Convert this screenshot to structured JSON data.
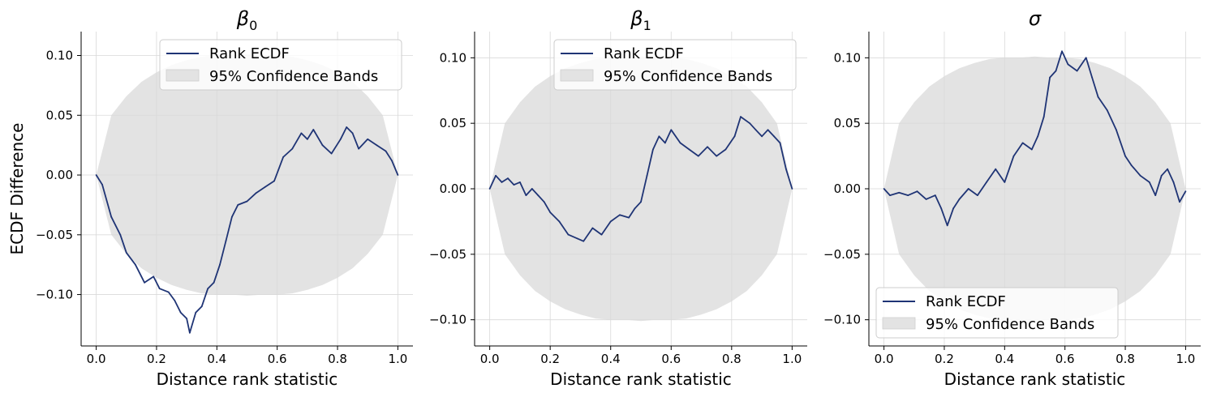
{
  "figure": {
    "ylabel": "ECDF Difference",
    "legend": {
      "line_label": "Rank ECDF",
      "band_label": "95% Confidence Bands"
    },
    "colors": {
      "line": "#1f3475",
      "band": "#e3e3e3",
      "grid": "#d9d9d9"
    }
  },
  "chart_data": [
    {
      "type": "line",
      "title_base": "β",
      "title_sub": "0",
      "xlabel": "Distance rank statistic",
      "ylabel": "ECDF Difference",
      "xlim": [
        -0.05,
        1.05
      ],
      "ylim": [
        -0.143,
        0.12
      ],
      "xticks": [
        "0.0",
        "0.2",
        "0.4",
        "0.6",
        "0.8",
        "1.0"
      ],
      "yticks": [
        "−0.10",
        "−0.05",
        "0.00",
        "0.05",
        "0.10"
      ],
      "ytick_values": [
        -0.1,
        -0.05,
        0.0,
        0.05,
        0.1
      ],
      "grid": true,
      "legend_location": "upper right",
      "band": {
        "x": [
          0,
          0.05,
          0.1,
          0.15,
          0.2,
          0.25,
          0.3,
          0.35,
          0.4,
          0.45,
          0.5,
          0.55,
          0.6,
          0.65,
          0.7,
          0.75,
          0.8,
          0.85,
          0.9,
          0.95,
          1.0
        ],
        "half_width": [
          0,
          0.05,
          0.066,
          0.078,
          0.086,
          0.092,
          0.096,
          0.099,
          0.1,
          0.1,
          0.101,
          0.1,
          0.1,
          0.099,
          0.096,
          0.092,
          0.086,
          0.078,
          0.066,
          0.05,
          0
        ]
      },
      "series": [
        {
          "name": "Rank ECDF",
          "x": [
            0,
            0.02,
            0.05,
            0.08,
            0.1,
            0.13,
            0.16,
            0.19,
            0.21,
            0.24,
            0.26,
            0.28,
            0.3,
            0.31,
            0.33,
            0.35,
            0.37,
            0.39,
            0.41,
            0.43,
            0.45,
            0.47,
            0.5,
            0.53,
            0.56,
            0.59,
            0.62,
            0.65,
            0.68,
            0.7,
            0.72,
            0.75,
            0.78,
            0.81,
            0.83,
            0.85,
            0.87,
            0.9,
            0.93,
            0.96,
            0.98,
            1.0
          ],
          "y": [
            0,
            -0.008,
            -0.035,
            -0.05,
            -0.065,
            -0.075,
            -0.09,
            -0.085,
            -0.095,
            -0.098,
            -0.105,
            -0.115,
            -0.12,
            -0.132,
            -0.115,
            -0.11,
            -0.095,
            -0.09,
            -0.075,
            -0.055,
            -0.035,
            -0.025,
            -0.022,
            -0.015,
            -0.01,
            -0.005,
            0.015,
            0.022,
            0.035,
            0.03,
            0.038,
            0.025,
            0.018,
            0.03,
            0.04,
            0.035,
            0.022,
            0.03,
            0.025,
            0.02,
            0.012,
            0
          ]
        }
      ]
    },
    {
      "type": "line",
      "title_base": "β",
      "title_sub": "1",
      "xlabel": "Distance rank statistic",
      "xlim": [
        -0.05,
        1.05
      ],
      "ylim": [
        -0.12,
        0.12
      ],
      "xticks": [
        "0.0",
        "0.2",
        "0.4",
        "0.6",
        "0.8",
        "1.0"
      ],
      "yticks": [
        "−0.10",
        "−0.05",
        "0.00",
        "0.05",
        "0.10"
      ],
      "ytick_values": [
        -0.1,
        -0.05,
        0.0,
        0.05,
        0.1
      ],
      "grid": true,
      "legend_location": "upper right",
      "band": {
        "x": [
          0,
          0.05,
          0.1,
          0.15,
          0.2,
          0.25,
          0.3,
          0.35,
          0.4,
          0.45,
          0.5,
          0.55,
          0.6,
          0.65,
          0.7,
          0.75,
          0.8,
          0.85,
          0.9,
          0.95,
          1.0
        ],
        "half_width": [
          0,
          0.05,
          0.066,
          0.078,
          0.086,
          0.092,
          0.096,
          0.099,
          0.1,
          0.1,
          0.101,
          0.1,
          0.1,
          0.099,
          0.096,
          0.092,
          0.086,
          0.078,
          0.066,
          0.05,
          0
        ]
      },
      "series": [
        {
          "name": "Rank ECDF",
          "x": [
            0,
            0.02,
            0.04,
            0.06,
            0.08,
            0.1,
            0.12,
            0.14,
            0.16,
            0.18,
            0.2,
            0.23,
            0.26,
            0.29,
            0.31,
            0.34,
            0.37,
            0.4,
            0.43,
            0.46,
            0.48,
            0.5,
            0.52,
            0.54,
            0.56,
            0.58,
            0.6,
            0.63,
            0.66,
            0.69,
            0.72,
            0.75,
            0.78,
            0.81,
            0.83,
            0.86,
            0.88,
            0.9,
            0.92,
            0.94,
            0.96,
            0.98,
            1.0
          ],
          "y": [
            0,
            0.01,
            0.005,
            0.008,
            0.003,
            0.005,
            -0.005,
            0.0,
            -0.005,
            -0.01,
            -0.018,
            -0.025,
            -0.035,
            -0.038,
            -0.04,
            -0.03,
            -0.035,
            -0.025,
            -0.02,
            -0.022,
            -0.015,
            -0.01,
            0.01,
            0.03,
            0.04,
            0.035,
            0.045,
            0.035,
            0.03,
            0.025,
            0.032,
            0.025,
            0.03,
            0.04,
            0.055,
            0.05,
            0.045,
            0.04,
            0.045,
            0.04,
            0.035,
            0.015,
            0
          ]
        }
      ]
    },
    {
      "type": "line",
      "title_base": "σ",
      "title_sub": "",
      "xlabel": "Distance rank statistic",
      "xlim": [
        -0.05,
        1.05
      ],
      "ylim": [
        -0.12,
        0.12
      ],
      "xticks": [
        "0.0",
        "0.2",
        "0.4",
        "0.6",
        "0.8",
        "1.0"
      ],
      "yticks": [
        "−0.10",
        "−0.05",
        "0.00",
        "0.05",
        "0.10"
      ],
      "ytick_values": [
        -0.1,
        -0.05,
        0.0,
        0.05,
        0.1
      ],
      "grid": true,
      "legend_location": "lower left",
      "band": {
        "x": [
          0,
          0.05,
          0.1,
          0.15,
          0.2,
          0.25,
          0.3,
          0.35,
          0.4,
          0.45,
          0.5,
          0.55,
          0.6,
          0.65,
          0.7,
          0.75,
          0.8,
          0.85,
          0.9,
          0.95,
          1.0
        ],
        "half_width": [
          0,
          0.05,
          0.066,
          0.078,
          0.086,
          0.092,
          0.096,
          0.099,
          0.1,
          0.1,
          0.101,
          0.1,
          0.1,
          0.099,
          0.096,
          0.092,
          0.086,
          0.078,
          0.066,
          0.05,
          0
        ]
      },
      "series": [
        {
          "name": "Rank ECDF",
          "x": [
            0,
            0.02,
            0.05,
            0.08,
            0.11,
            0.14,
            0.17,
            0.19,
            0.21,
            0.23,
            0.25,
            0.28,
            0.31,
            0.34,
            0.37,
            0.4,
            0.43,
            0.46,
            0.49,
            0.51,
            0.53,
            0.55,
            0.57,
            0.59,
            0.61,
            0.64,
            0.67,
            0.69,
            0.71,
            0.74,
            0.77,
            0.8,
            0.82,
            0.85,
            0.88,
            0.9,
            0.92,
            0.94,
            0.96,
            0.98,
            1.0
          ],
          "y": [
            0,
            -0.005,
            -0.003,
            -0.005,
            -0.002,
            -0.008,
            -0.005,
            -0.015,
            -0.028,
            -0.015,
            -0.008,
            0.0,
            -0.005,
            0.005,
            0.015,
            0.005,
            0.025,
            0.035,
            0.03,
            0.04,
            0.055,
            0.085,
            0.09,
            0.105,
            0.095,
            0.09,
            0.1,
            0.085,
            0.07,
            0.06,
            0.045,
            0.025,
            0.018,
            0.01,
            0.005,
            -0.005,
            0.01,
            0.015,
            0.005,
            -0.01,
            -0.002
          ]
        }
      ]
    }
  ]
}
